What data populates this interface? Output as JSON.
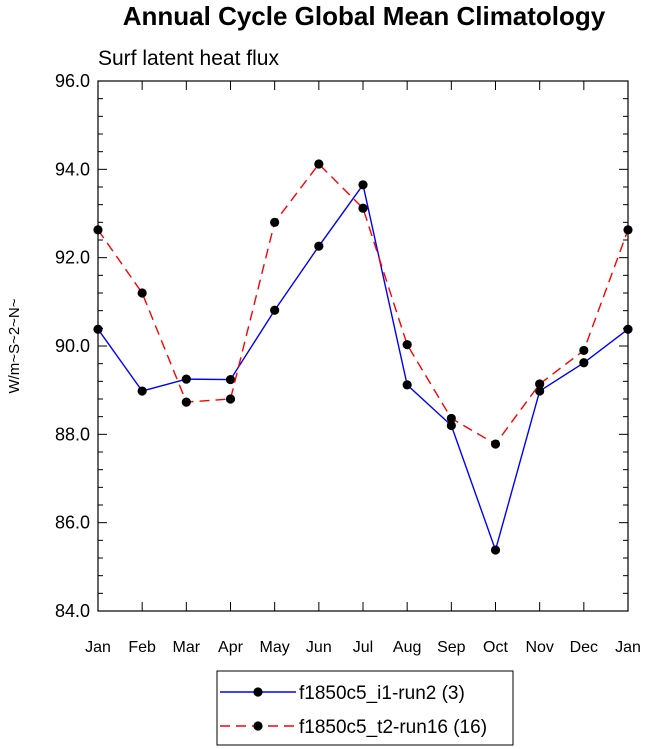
{
  "chart_data": {
    "type": "line",
    "title": "Annual Cycle Global Mean Climatology",
    "subtitle": "Surf latent heat flux",
    "xlabel": "",
    "ylabel": "W/m~S~2~N~",
    "categories": [
      "Jan",
      "Feb",
      "Mar",
      "Apr",
      "May",
      "Jun",
      "Jul",
      "Aug",
      "Sep",
      "Oct",
      "Nov",
      "Dec",
      "Jan"
    ],
    "yticks": [
      "84.0",
      "86.0",
      "88.0",
      "90.0",
      "92.0",
      "94.0",
      "96.0"
    ],
    "ylim": [
      84,
      96
    ],
    "legend_position": "bottom-center",
    "series": [
      {
        "name": "f1850c5_i1-run2 (3)",
        "color": "#0000ff",
        "dash": "solid",
        "values": [
          90.38,
          88.98,
          89.25,
          89.24,
          90.81,
          92.26,
          93.65,
          89.12,
          88.2,
          85.38,
          88.98,
          89.62,
          90.38
        ]
      },
      {
        "name": "f1850c5_t2-run16 (16)",
        "color": "#ff0000",
        "dash": "dashed",
        "values": [
          92.63,
          91.2,
          88.73,
          88.8,
          92.8,
          94.12,
          93.12,
          90.03,
          88.36,
          87.78,
          89.14,
          89.9,
          92.63
        ]
      }
    ]
  }
}
